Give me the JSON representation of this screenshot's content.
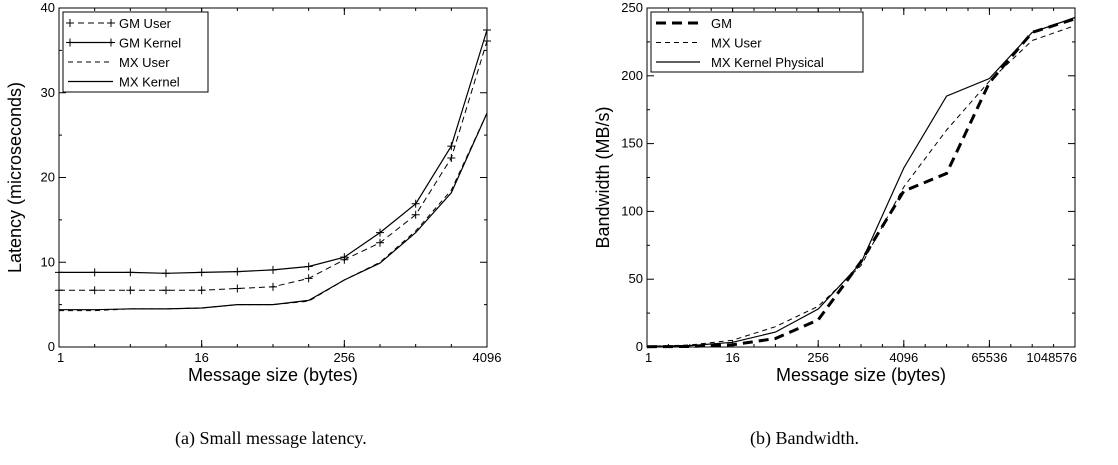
{
  "captions": {
    "a": "(a) Small message latency.",
    "b": "(b) Bandwidth."
  },
  "chart_data": [
    {
      "type": "line",
      "xlabel": "Message size (bytes)",
      "ylabel": "Latency (microseconds)",
      "x_scale": "log2",
      "xlim": [
        1,
        4096
      ],
      "ylim": [
        0,
        40
      ],
      "x_ticks": [
        1,
        16,
        256,
        4096
      ],
      "x_tick_labels": [
        "1",
        "16",
        "256",
        "4096"
      ],
      "y_ticks": [
        0,
        10,
        20,
        30,
        40
      ],
      "y_tick_labels": [
        "0",
        "10",
        "20",
        "30",
        "40"
      ],
      "legend_position": "top-left",
      "x": [
        1,
        2,
        4,
        8,
        16,
        32,
        64,
        128,
        256,
        512,
        1024,
        2048,
        4096
      ],
      "series": [
        {
          "name": "GM User",
          "style": "dashed-plus",
          "values": [
            6.7,
            6.7,
            6.7,
            6.7,
            6.7,
            6.9,
            7.1,
            8.1,
            10.3,
            12.3,
            15.6,
            22.3,
            36.1
          ]
        },
        {
          "name": "GM Kernel",
          "style": "solid-plus",
          "values": [
            8.8,
            8.8,
            8.8,
            8.7,
            8.8,
            8.9,
            9.1,
            9.5,
            10.6,
            13.5,
            16.9,
            23.7,
            37.4
          ]
        },
        {
          "name": "MX User",
          "style": "dashed",
          "values": [
            4.3,
            4.3,
            4.5,
            4.5,
            4.6,
            5.0,
            5.0,
            5.4,
            7.9,
            10.0,
            13.7,
            18.5,
            27.6
          ]
        },
        {
          "name": "MX Kernel",
          "style": "solid",
          "values": [
            4.4,
            4.4,
            4.5,
            4.5,
            4.6,
            5.0,
            5.0,
            5.5,
            7.9,
            9.9,
            13.5,
            18.2,
            27.6
          ]
        }
      ]
    },
    {
      "type": "line",
      "xlabel": "Message size (bytes)",
      "ylabel": "Bandwidth (MB/s)",
      "x_scale": "log2",
      "xlim": [
        1,
        1048576
      ],
      "ylim": [
        0,
        250
      ],
      "x_ticks": [
        1,
        16,
        256,
        4096,
        65536,
        1048576
      ],
      "x_tick_labels": [
        "1",
        "16",
        "256",
        "4096",
        "65536",
        "1048576"
      ],
      "y_ticks": [
        0,
        50,
        100,
        150,
        200,
        250
      ],
      "y_tick_labels": [
        "0",
        "50",
        "100",
        "150",
        "200",
        "250"
      ],
      "legend_position": "top-left",
      "x": [
        1,
        4,
        16,
        64,
        256,
        1024,
        4096,
        16384,
        65536,
        262144,
        1048576
      ],
      "series": [
        {
          "name": "GM",
          "style": "thick-dashed",
          "values": [
            0.2,
            0.4,
            1.6,
            6.3,
            20,
            63,
            115,
            128,
            195,
            232,
            242
          ]
        },
        {
          "name": "MX User",
          "style": "dashed",
          "values": [
            0.5,
            1.5,
            5,
            15,
            30,
            60,
            118,
            160,
            196,
            226,
            237
          ]
        },
        {
          "name": "MX Kernel Physical",
          "style": "solid",
          "values": [
            0.4,
            1,
            3.5,
            11,
            28,
            62,
            132,
            185,
            198,
            232,
            243
          ]
        }
      ]
    }
  ]
}
